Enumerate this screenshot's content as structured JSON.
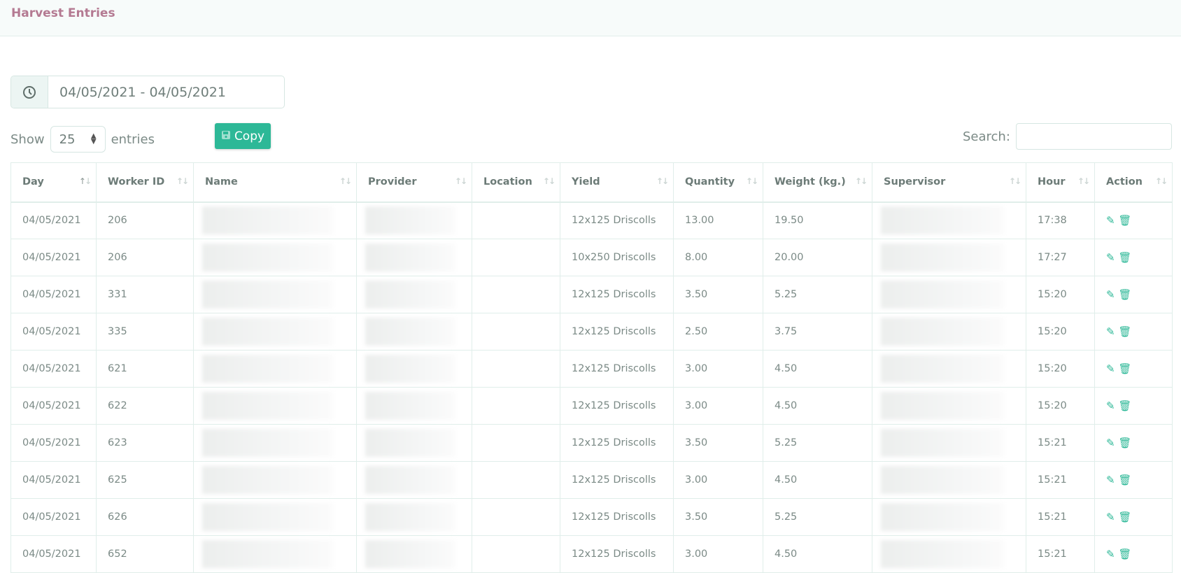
{
  "page": {
    "title": "Harvest Entries"
  },
  "filters": {
    "date_range": "04/05/2021 - 04/05/2021",
    "show_label": "Show",
    "entries_value": "25",
    "entries_label": "entries",
    "copy_label": "Copy",
    "search_label": "Search:",
    "search_value": ""
  },
  "table": {
    "columns": [
      "Day",
      "Worker ID",
      "Name",
      "Provider",
      "Location",
      "Yield",
      "Quantity",
      "Weight (kg.)",
      "Supervisor",
      "Hour",
      "Action"
    ],
    "rows": [
      {
        "day": "04/05/2021",
        "worker_id": "206",
        "yield": "12x125 Driscolls",
        "quantity": "13.00",
        "weight": "19.50",
        "hour": "17:38"
      },
      {
        "day": "04/05/2021",
        "worker_id": "206",
        "yield": "10x250 Driscolls",
        "quantity": "8.00",
        "weight": "20.00",
        "hour": "17:27"
      },
      {
        "day": "04/05/2021",
        "worker_id": "331",
        "yield": "12x125 Driscolls",
        "quantity": "3.50",
        "weight": "5.25",
        "hour": "15:20"
      },
      {
        "day": "04/05/2021",
        "worker_id": "335",
        "yield": "12x125 Driscolls",
        "quantity": "2.50",
        "weight": "3.75",
        "hour": "15:20"
      },
      {
        "day": "04/05/2021",
        "worker_id": "621",
        "yield": "12x125 Driscolls",
        "quantity": "3.00",
        "weight": "4.50",
        "hour": "15:20"
      },
      {
        "day": "04/05/2021",
        "worker_id": "622",
        "yield": "12x125 Driscolls",
        "quantity": "3.00",
        "weight": "4.50",
        "hour": "15:20"
      },
      {
        "day": "04/05/2021",
        "worker_id": "623",
        "yield": "12x125 Driscolls",
        "quantity": "3.50",
        "weight": "5.25",
        "hour": "15:21"
      },
      {
        "day": "04/05/2021",
        "worker_id": "625",
        "yield": "12x125 Driscolls",
        "quantity": "3.00",
        "weight": "4.50",
        "hour": "15:21"
      },
      {
        "day": "04/05/2021",
        "worker_id": "626",
        "yield": "12x125 Driscolls",
        "quantity": "3.50",
        "weight": "5.25",
        "hour": "15:21"
      },
      {
        "day": "04/05/2021",
        "worker_id": "652",
        "yield": "12x125 Driscolls",
        "quantity": "3.00",
        "weight": "4.50",
        "hour": "15:21"
      }
    ]
  },
  "colors": {
    "accent": "#2db897",
    "title": "#b47a92"
  },
  "icons": {
    "date": "clock-icon",
    "copy": "save-icon",
    "edit": "edit-icon",
    "delete": "trash-icon"
  }
}
